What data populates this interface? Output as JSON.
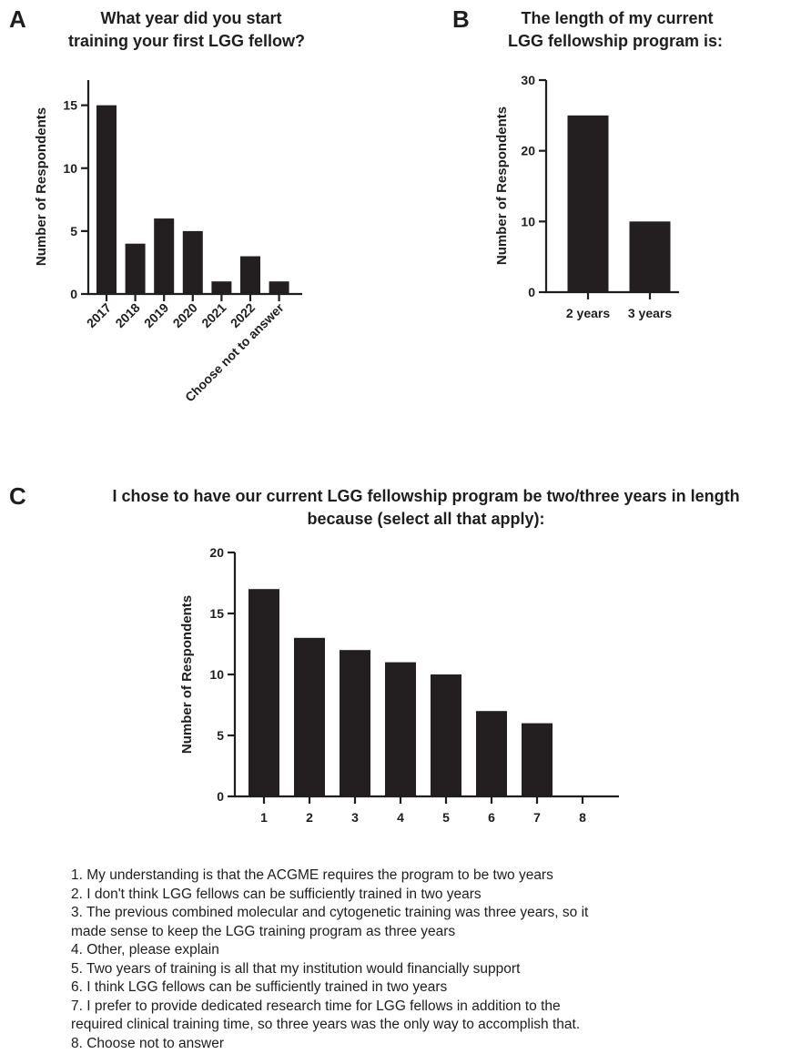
{
  "panels": {
    "a": {
      "letter": "A"
    },
    "b": {
      "letter": "B"
    },
    "c": {
      "letter": "C"
    }
  },
  "chart_data": [
    {
      "id": "a",
      "type": "bar",
      "title_lines": [
        "What year did you start",
        "training your first LGG fellow?"
      ],
      "categories": [
        "2017",
        "2018",
        "2019",
        "2020",
        "2021",
        "2022",
        "Choose not to answer"
      ],
      "values": [
        15,
        4,
        6,
        5,
        1,
        3,
        1
      ],
      "xlabel": "",
      "ylabel": "Number of Respondents",
      "ylim": [
        0,
        17
      ],
      "yticks": [
        0,
        5,
        10,
        15
      ],
      "grid": false
    },
    {
      "id": "b",
      "type": "bar",
      "title_lines": [
        "The length of my current",
        "LGG fellowship program is:"
      ],
      "categories": [
        "2 years",
        "3 years"
      ],
      "values": [
        25,
        10
      ],
      "xlabel": "",
      "ylabel": "Number of Respondents",
      "ylim": [
        0,
        30
      ],
      "yticks": [
        0,
        10,
        20,
        30
      ],
      "grid": false
    },
    {
      "id": "c",
      "type": "bar",
      "title_lines": [
        "I chose to have our current LGG fellowship program be two/three years in length",
        "because (select all that apply):"
      ],
      "categories": [
        "1",
        "2",
        "3",
        "4",
        "5",
        "6",
        "7",
        "8"
      ],
      "values": [
        17,
        13,
        12,
        11,
        10,
        7,
        6,
        0
      ],
      "xlabel": "",
      "ylabel": "Number of Respondents",
      "ylim": [
        0,
        20
      ],
      "yticks": [
        0,
        5,
        10,
        15,
        20
      ],
      "grid": false
    }
  ],
  "legend_lines": [
    "1. My understanding is that the ACGME requires the program to be two years",
    "2. I don't think LGG fellows can be sufficiently trained in two years",
    "3. The previous combined molecular and cytogenetic training was three years, so it",
    "made sense to keep the LGG training program as three years",
    "4. Other, please explain",
    "5. Two years of training is all that my institution would financially support",
    "6. I think LGG fellows can be sufficiently trained in two years",
    "7. I prefer to provide dedicated research time for LGG fellows in addition to the",
    "required clinical training time, so three years was the only way to accomplish that.",
    "8. Choose not to answer"
  ]
}
